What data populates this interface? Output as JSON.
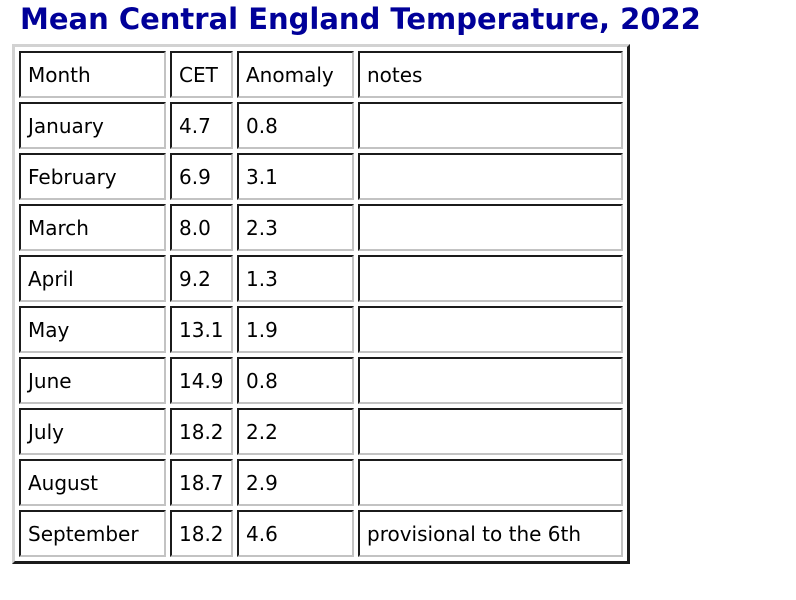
{
  "page": {
    "title": "Mean Central England Temperature, 2022",
    "title_color": "#000099",
    "background_color": "#ffffff",
    "text_color": "#000000"
  },
  "table": {
    "headers": [
      "Month",
      "CET",
      "Anomaly",
      "notes"
    ],
    "rows": [
      {
        "month": "January",
        "cet": "4.7",
        "anomaly": "0.8",
        "notes": ""
      },
      {
        "month": "February",
        "cet": "6.9",
        "anomaly": "3.1",
        "notes": ""
      },
      {
        "month": "March",
        "cet": "8.0",
        "anomaly": "2.3",
        "notes": ""
      },
      {
        "month": "April",
        "cet": "9.2",
        "anomaly": "1.3",
        "notes": ""
      },
      {
        "month": "May",
        "cet": "13.1",
        "anomaly": "1.9",
        "notes": ""
      },
      {
        "month": "June",
        "cet": "14.9",
        "anomaly": "0.8",
        "notes": ""
      },
      {
        "month": "July",
        "cet": "18.2",
        "anomaly": "2.2",
        "notes": ""
      },
      {
        "month": "August",
        "cet": "18.7",
        "anomaly": "2.9",
        "notes": ""
      },
      {
        "month": "September",
        "cet": "18.2",
        "anomaly": "4.6",
        "notes": "provisional to the 6th"
      }
    ]
  }
}
